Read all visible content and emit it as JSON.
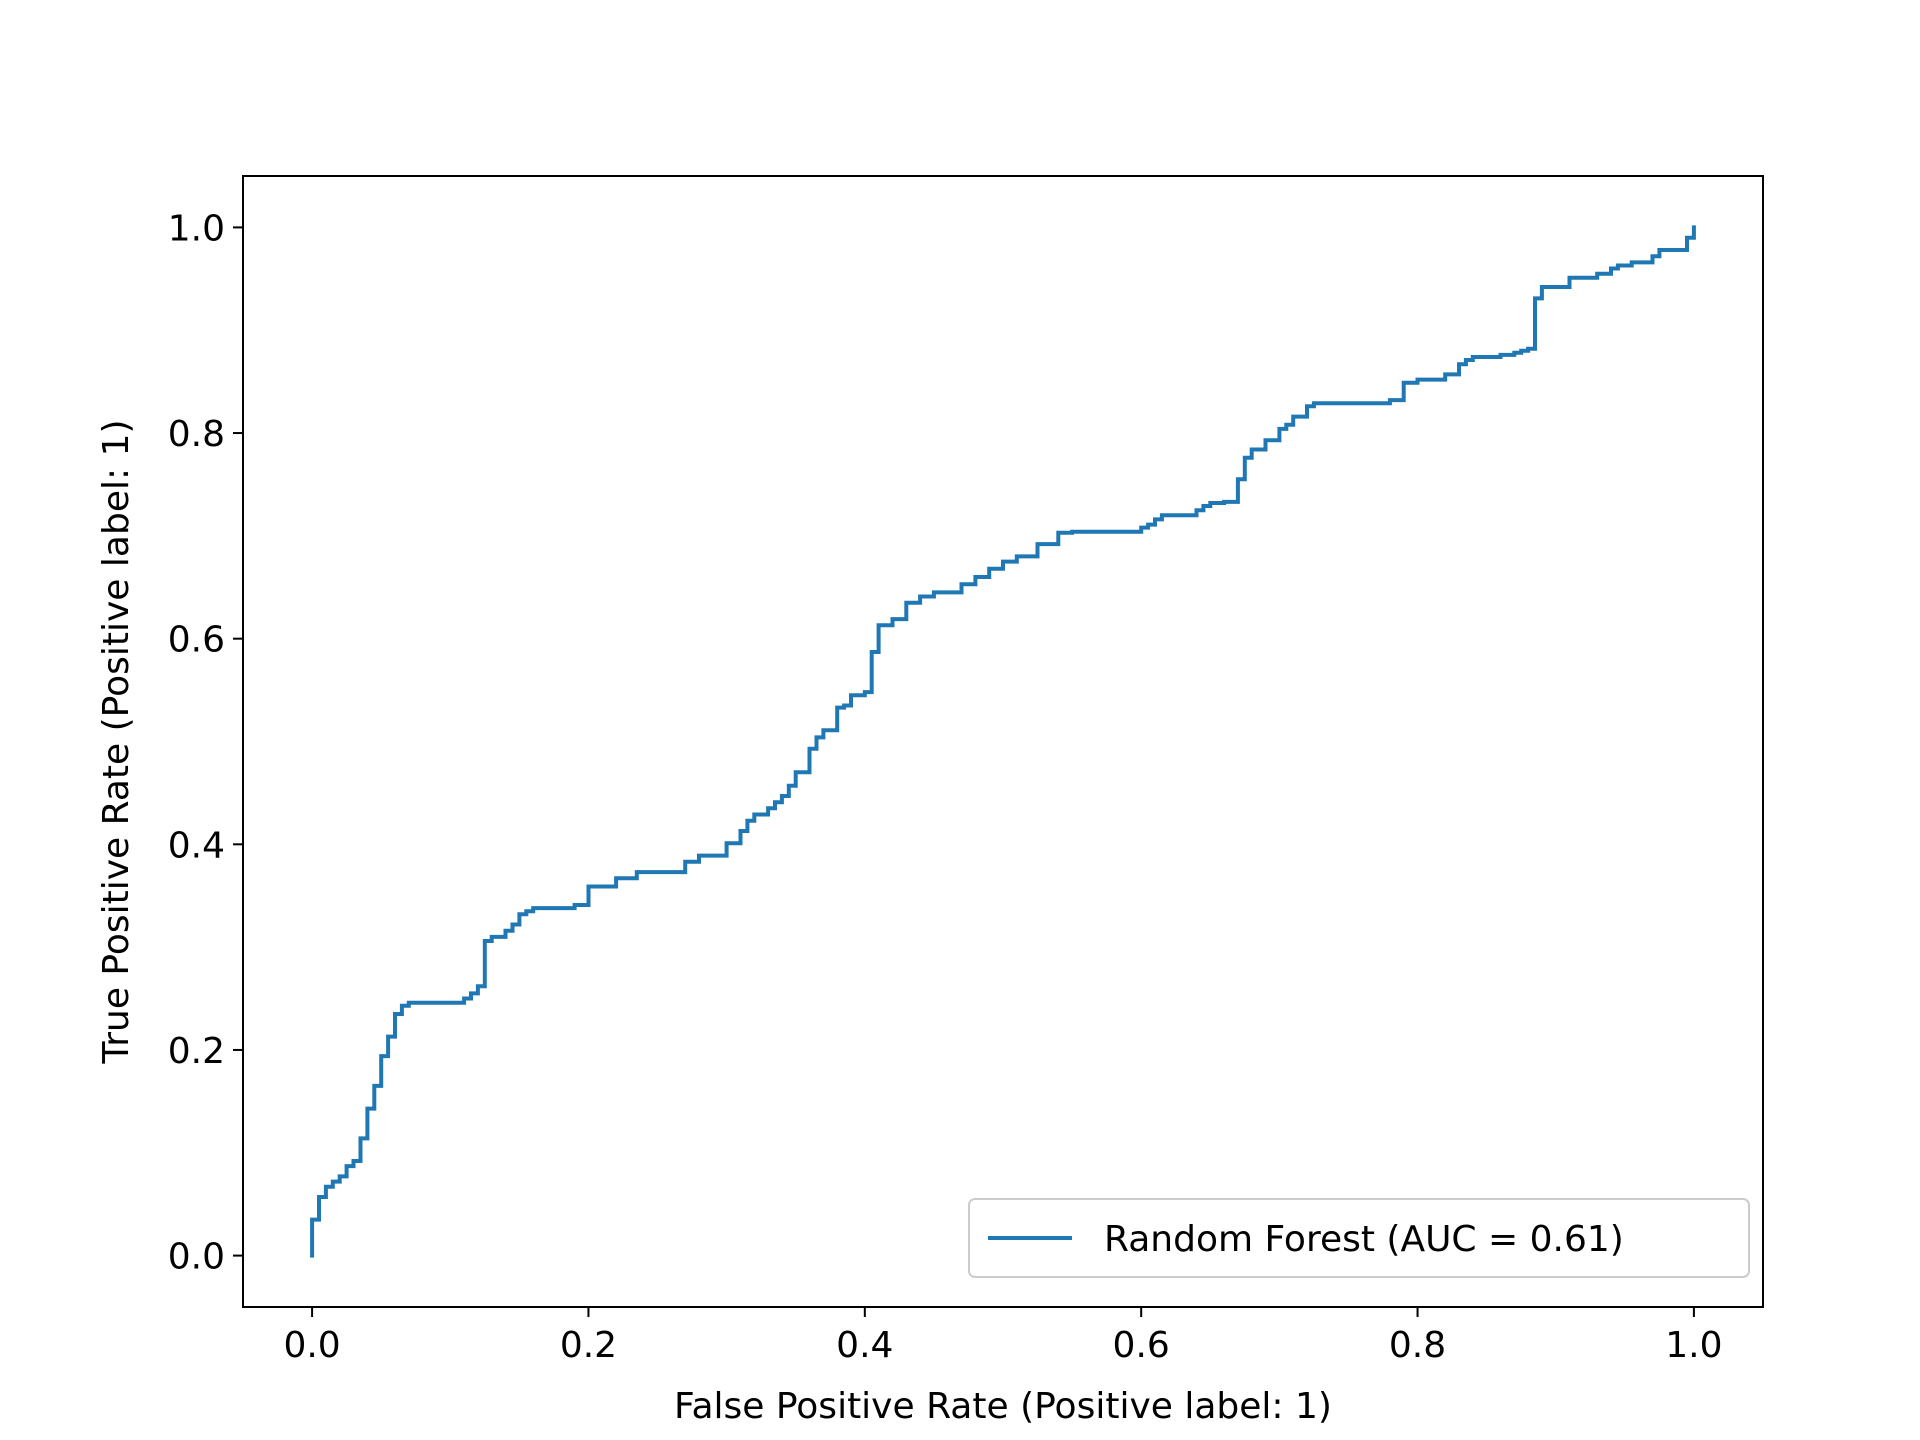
{
  "chart_data": {
    "type": "line",
    "xlabel": "False Positive Rate (Positive label: 1)",
    "ylabel": "True Positive Rate (Positive label: 1)",
    "xlim": [
      -0.05,
      1.05
    ],
    "ylim": [
      -0.05,
      1.05
    ],
    "xticks": [
      0.0,
      0.2,
      0.4,
      0.6,
      0.8,
      1.0
    ],
    "xtick_labels": [
      "0.0",
      "0.2",
      "0.4",
      "0.6",
      "0.8",
      "1.0"
    ],
    "yticks": [
      0.0,
      0.2,
      0.4,
      0.6,
      0.8,
      1.0
    ],
    "ytick_labels": [
      "0.0",
      "0.2",
      "0.4",
      "0.6",
      "0.8",
      "1.0"
    ],
    "grid": false,
    "legend_position": "lower-right",
    "series": [
      {
        "name": "Random Forest (AUC = 0.61)",
        "color": "#1f77b4",
        "drawstyle": "steps-post",
        "x": [
          0.0,
          0.0,
          0.005,
          0.01,
          0.015,
          0.02,
          0.025,
          0.03,
          0.035,
          0.04,
          0.045,
          0.05,
          0.055,
          0.06,
          0.065,
          0.07,
          0.075,
          0.085,
          0.11,
          0.115,
          0.12,
          0.125,
          0.13,
          0.14,
          0.145,
          0.15,
          0.155,
          0.16,
          0.17,
          0.18,
          0.19,
          0.2,
          0.22,
          0.235,
          0.25,
          0.27,
          0.28,
          0.3,
          0.31,
          0.315,
          0.32,
          0.33,
          0.335,
          0.34,
          0.345,
          0.35,
          0.36,
          0.365,
          0.37,
          0.38,
          0.385,
          0.39,
          0.4,
          0.405,
          0.41,
          0.42,
          0.43,
          0.44,
          0.45,
          0.47,
          0.48,
          0.49,
          0.5,
          0.51,
          0.525,
          0.54,
          0.55,
          0.555,
          0.6,
          0.605,
          0.61,
          0.615,
          0.625,
          0.64,
          0.645,
          0.65,
          0.66,
          0.67,
          0.675,
          0.68,
          0.69,
          0.7,
          0.705,
          0.71,
          0.72,
          0.725,
          0.73,
          0.74,
          0.78,
          0.79,
          0.8,
          0.82,
          0.83,
          0.835,
          0.84,
          0.85,
          0.86,
          0.87,
          0.875,
          0.88,
          0.885,
          0.89,
          0.91,
          0.925,
          0.93,
          0.94,
          0.945,
          0.955,
          0.97,
          0.975,
          0.995,
          1.0
        ],
        "y": [
          0.0,
          0.035,
          0.057,
          0.067,
          0.072,
          0.077,
          0.087,
          0.092,
          0.114,
          0.143,
          0.165,
          0.194,
          0.213,
          0.235,
          0.243,
          0.246,
          0.246,
          0.246,
          0.25,
          0.255,
          0.262,
          0.306,
          0.31,
          0.316,
          0.322,
          0.332,
          0.335,
          0.338,
          0.338,
          0.338,
          0.341,
          0.359,
          0.367,
          0.373,
          0.373,
          0.383,
          0.389,
          0.401,
          0.413,
          0.423,
          0.429,
          0.435,
          0.441,
          0.447,
          0.457,
          0.47,
          0.493,
          0.504,
          0.511,
          0.533,
          0.535,
          0.545,
          0.548,
          0.587,
          0.613,
          0.619,
          0.635,
          0.641,
          0.645,
          0.653,
          0.66,
          0.668,
          0.675,
          0.68,
          0.692,
          0.703,
          0.704,
          0.704,
          0.708,
          0.711,
          0.716,
          0.72,
          0.72,
          0.725,
          0.729,
          0.732,
          0.733,
          0.755,
          0.776,
          0.784,
          0.793,
          0.804,
          0.808,
          0.816,
          0.826,
          0.829,
          0.829,
          0.829,
          0.832,
          0.849,
          0.852,
          0.857,
          0.867,
          0.871,
          0.874,
          0.874,
          0.876,
          0.878,
          0.88,
          0.882,
          0.931,
          0.942,
          0.951,
          0.951,
          0.955,
          0.96,
          0.963,
          0.966,
          0.972,
          0.978,
          0.99,
          1.0
        ]
      }
    ]
  }
}
